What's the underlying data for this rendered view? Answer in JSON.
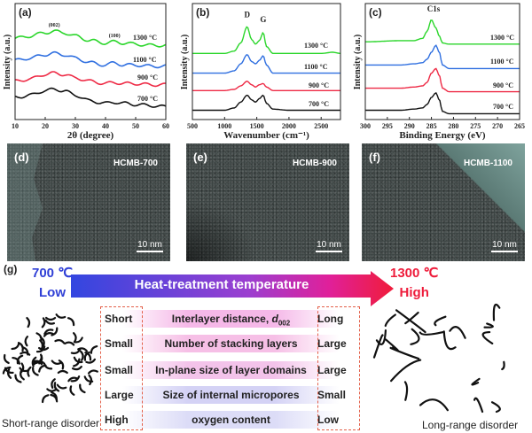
{
  "chart_data": [
    {
      "panel": "(a)",
      "type": "line",
      "xlabel": "2θ (degree)",
      "ylabel": "Intensity (a.u.)",
      "xlim": [
        10,
        60
      ],
      "ylim": [
        0,
        100
      ],
      "xticks": [
        10,
        20,
        30,
        40,
        50,
        60
      ],
      "annotations": [
        {
          "text": "(002)",
          "x": 23,
          "y": 80
        },
        {
          "text": "(100)",
          "x": 43,
          "y": 71
        }
      ],
      "x": [
        10,
        15,
        20,
        23,
        26,
        30,
        35,
        40,
        43,
        46,
        50,
        55,
        60
      ],
      "series": [
        {
          "name": "1300 °C",
          "color": "#2bd62b",
          "values": [
            70,
            72,
            75,
            76,
            75,
            72,
            68,
            66,
            67,
            66,
            65,
            64,
            64
          ]
        },
        {
          "name": "1100 °C",
          "color": "#2f6fe0",
          "values": [
            51,
            53,
            56,
            57,
            56,
            53,
            49,
            47,
            49,
            47,
            47,
            46,
            46
          ]
        },
        {
          "name": "900 °C",
          "color": "#ee2a45",
          "values": [
            33,
            35,
            39,
            40,
            39,
            36,
            33,
            31,
            32,
            31,
            31,
            30,
            30
          ]
        },
        {
          "name": "700 °C",
          "color": "#111111",
          "values": [
            19,
            21,
            25,
            26,
            25,
            21,
            16,
            14,
            15,
            14,
            13,
            12,
            11
          ]
        }
      ]
    },
    {
      "panel": "(b)",
      "type": "line",
      "xlabel": "Wavenumber (cm⁻¹)",
      "ylabel": "Intensity (a.u.)",
      "xlim": [
        500,
        2800
      ],
      "ylim": [
        0,
        100
      ],
      "xticks": [
        500,
        1000,
        1500,
        2000,
        2500
      ],
      "annotations": [
        {
          "text": "D",
          "x": 1350,
          "y": 88
        },
        {
          "text": "G",
          "x": 1600,
          "y": 84
        }
      ],
      "x": [
        500,
        1000,
        1150,
        1250,
        1350,
        1420,
        1480,
        1540,
        1600,
        1650,
        1750,
        2000,
        2500,
        2680,
        2800
      ],
      "series": [
        {
          "name": "1300 °C",
          "color": "#2bd62b",
          "values": [
            57,
            57,
            59,
            66,
            80,
            69,
            65,
            68,
            75,
            63,
            57,
            57,
            57,
            58,
            57
          ]
        },
        {
          "name": "1100 °C",
          "color": "#2f6fe0",
          "values": [
            40,
            40,
            42,
            48,
            56,
            50,
            48,
            51,
            55,
            47,
            40,
            40,
            40,
            40,
            40
          ]
        },
        {
          "name": "900 °C",
          "color": "#ee2a45",
          "values": [
            25,
            25,
            26,
            29,
            33,
            30,
            28,
            30,
            31,
            28,
            25,
            25,
            25,
            25,
            25
          ]
        },
        {
          "name": "700 °C",
          "color": "#111111",
          "values": [
            8,
            8,
            10,
            15,
            21,
            17,
            15,
            18,
            21,
            14,
            9,
            8,
            8,
            8,
            8
          ]
        }
      ]
    },
    {
      "panel": "(c)",
      "type": "line",
      "xlabel": "Binding Energy (eV)",
      "ylabel": "Intensity (a.u.)",
      "xlim": [
        300,
        265
      ],
      "ylim": [
        0,
        100
      ],
      "xticks": [
        300,
        295,
        290,
        285,
        280,
        275,
        270,
        265
      ],
      "annotations": [
        {
          "text": "C1s",
          "x": 284.5,
          "y": 93
        }
      ],
      "x": [
        300,
        292,
        289,
        287,
        286,
        285,
        284,
        283.2,
        282.5,
        281,
        275,
        265
      ],
      "series": [
        {
          "name": "1300 °C",
          "color": "#2bd62b",
          "values": [
            67,
            68,
            68,
            70,
            76,
            86,
            79,
            72,
            66,
            65,
            65,
            65
          ]
        },
        {
          "name": "1100 °C",
          "color": "#2f6fe0",
          "values": [
            47,
            47,
            48,
            49,
            52,
            58,
            64,
            58,
            47,
            44,
            44,
            44
          ]
        },
        {
          "name": "900 °C",
          "color": "#ee2a45",
          "values": [
            27,
            27,
            28,
            29,
            32,
            40,
            44,
            38,
            27,
            24,
            24,
            24
          ]
        },
        {
          "name": "700 °C",
          "color": "#111111",
          "values": [
            8,
            8,
            9,
            10,
            13,
            19,
            23,
            17,
            7,
            5,
            5,
            5
          ]
        }
      ]
    }
  ],
  "tem": [
    {
      "panel": "(d)",
      "name": "HCMB-700",
      "scale": "10 nm"
    },
    {
      "panel": "(e)",
      "name": "HCMB-900",
      "scale": "10 nm"
    },
    {
      "panel": "(f)",
      "name": "HCMB-1100",
      "scale": "10 nm"
    }
  ],
  "diagram": {
    "panel": "(g)",
    "low_temp": "700 ℃",
    "low_label": "Low",
    "high_temp": "1300 ℃",
    "high_label": "High",
    "arrow_label": "Heat-treatment temperature",
    "colors": {
      "low": "#2f3fd6",
      "high": "#ee1c3b"
    },
    "rows": [
      {
        "low": "Short",
        "property": "Interlayer distance, d002",
        "high": "Long"
      },
      {
        "low": "Small",
        "property": "Number of stacking layers",
        "high": "Large"
      },
      {
        "low": "Small",
        "property": "In-plane size of layer domains",
        "high": "Large"
      },
      {
        "low": "Large",
        "property": "Size of internal micropores",
        "high": "Small"
      },
      {
        "low": "High",
        "property": "oxygen content",
        "high": "Low"
      }
    ],
    "left_caption": "Short-range disorder",
    "right_caption": "Long-range disorder"
  }
}
